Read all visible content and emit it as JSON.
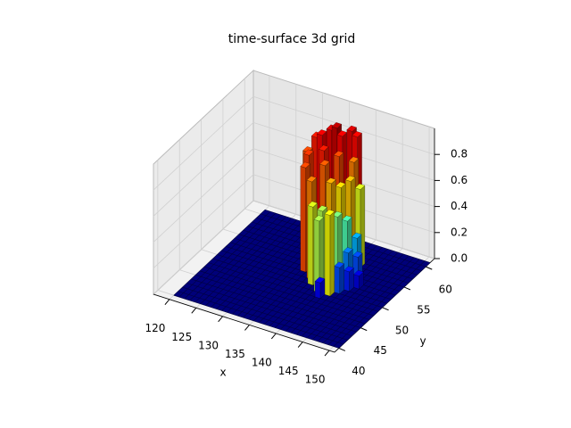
{
  "chart_data": {
    "type": "bar3d",
    "title": "time-surface 3d grid",
    "xlabel": "x",
    "ylabel": "y",
    "colormap": "jet",
    "xlim": [
      117,
      151
    ],
    "ylim": [
      39,
      62
    ],
    "zlim": [
      0,
      1
    ],
    "xticks": [
      120,
      125,
      130,
      135,
      140,
      145,
      150
    ],
    "yticks": [
      40,
      45,
      50,
      55,
      60
    ],
    "zticks": [
      {
        "value": 0,
        "label": "0.0"
      },
      0.2,
      0.4,
      0.6,
      0.8
    ],
    "grid": true,
    "bars": [
      {
        "x": 132,
        "y": 57,
        "z": 0.85
      },
      {
        "x": 133,
        "y": 57,
        "z": 0.88
      },
      {
        "x": 134,
        "y": 58,
        "z": 0.9
      },
      {
        "x": 135,
        "y": 58,
        "z": 0.93
      },
      {
        "x": 136,
        "y": 58,
        "z": 0.88
      },
      {
        "x": 137,
        "y": 59,
        "z": 0.9
      },
      {
        "x": 138,
        "y": 59,
        "z": 0.87
      },
      {
        "x": 132,
        "y": 55,
        "z": 0.8
      },
      {
        "x": 133,
        "y": 54,
        "z": 0.82
      },
      {
        "x": 135,
        "y": 55,
        "z": 0.85
      },
      {
        "x": 136,
        "y": 54,
        "z": 0.78
      },
      {
        "x": 137,
        "y": 56,
        "z": 0.8
      },
      {
        "x": 139,
        "y": 57,
        "z": 0.75
      },
      {
        "x": 134,
        "y": 52,
        "z": 0.8
      },
      {
        "x": 136,
        "y": 51,
        "z": 0.75
      },
      {
        "x": 138,
        "y": 53,
        "z": 0.7
      },
      {
        "x": 139,
        "y": 54,
        "z": 0.65
      },
      {
        "x": 140,
        "y": 55,
        "z": 0.68
      },
      {
        "x": 141,
        "y": 56,
        "z": 0.6
      },
      {
        "x": 137,
        "y": 50,
        "z": 0.6
      },
      {
        "x": 138,
        "y": 51,
        "z": 0.55
      },
      {
        "x": 140,
        "y": 52,
        "z": 0.5
      },
      {
        "x": 141,
        "y": 53,
        "z": 0.45
      },
      {
        "x": 139,
        "y": 49,
        "z": 0.55
      },
      {
        "x": 142,
        "y": 54,
        "z": 0.3
      },
      {
        "x": 142,
        "y": 52,
        "z": 0.25
      },
      {
        "x": 143,
        "y": 53,
        "z": 0.2
      },
      {
        "x": 143,
        "y": 51,
        "z": 0.15
      },
      {
        "x": 144,
        "y": 52,
        "z": 0.1
      },
      {
        "x": 142,
        "y": 50,
        "z": 0.2
      },
      {
        "x": 141,
        "y": 49,
        "z": 0.62
      },
      {
        "x": 140,
        "y": 48,
        "z": 0.12
      }
    ]
  }
}
